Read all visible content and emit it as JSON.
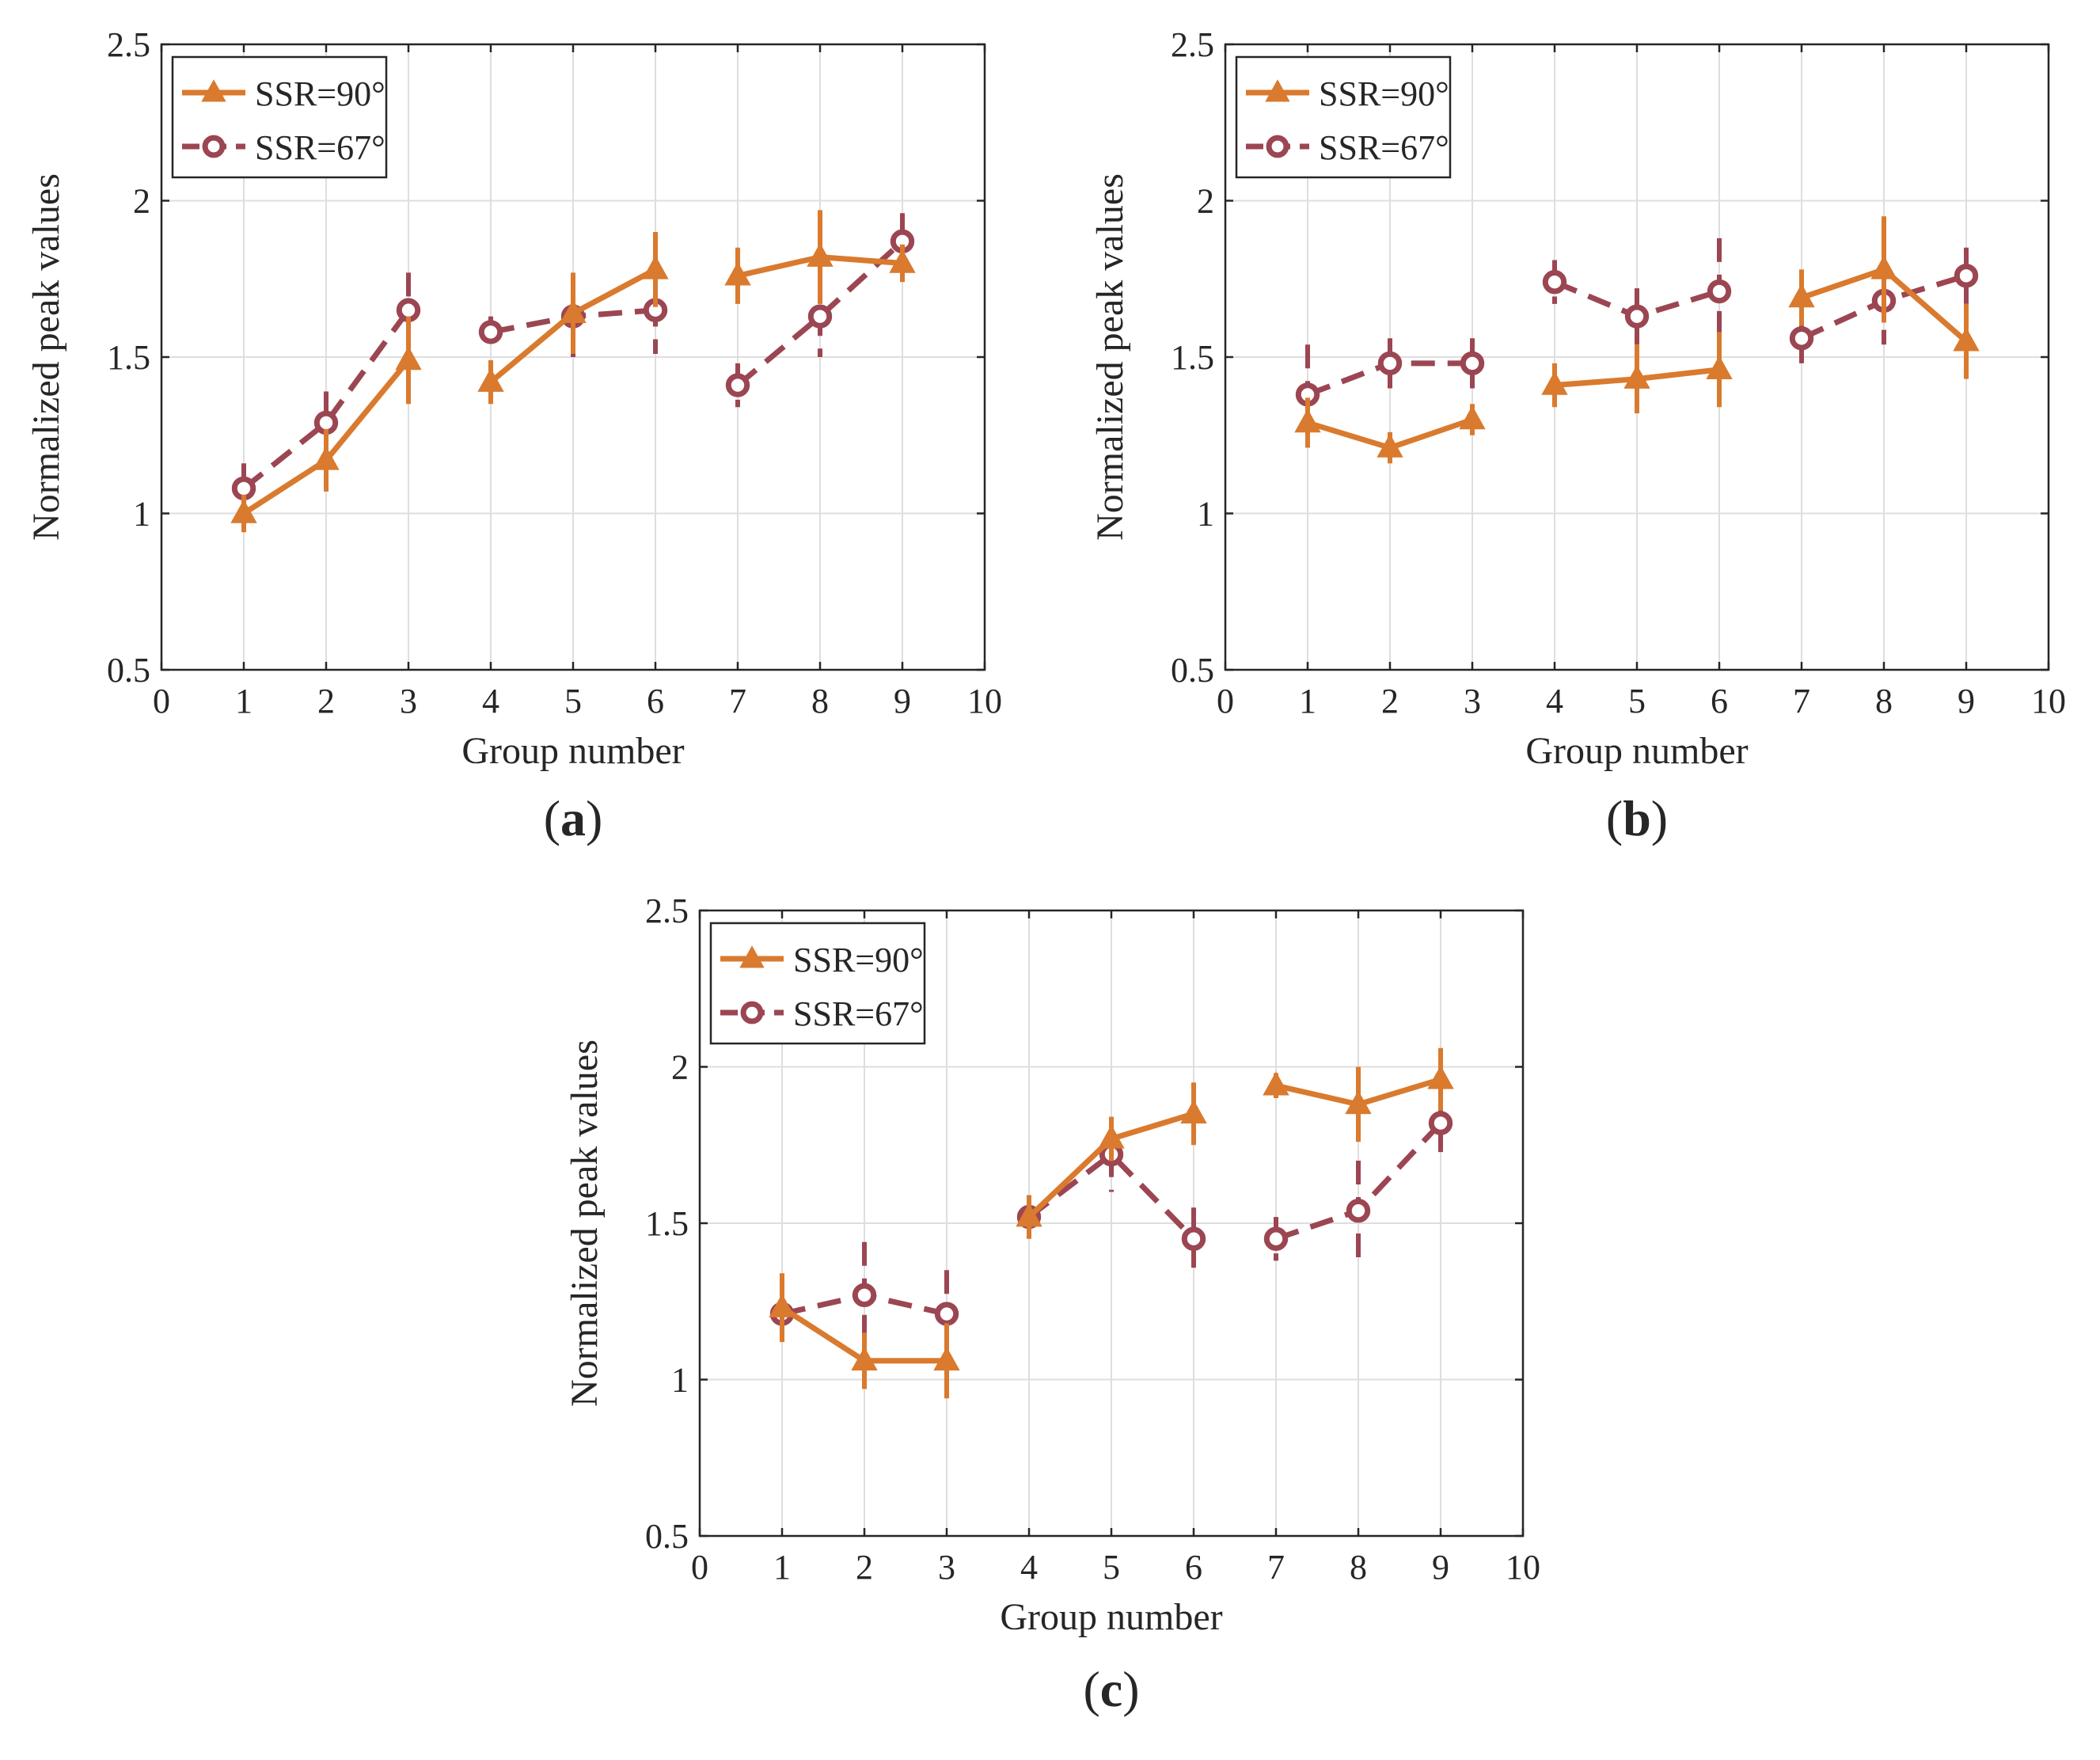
{
  "chart_data": [
    {
      "type": "line",
      "panel_label": "(a)",
      "panel_letter": "a",
      "xlabel": "Group number",
      "ylabel": "Normalized peak values",
      "xlim": [
        0,
        10
      ],
      "ylim": [
        0.5,
        2.5
      ],
      "xticks": [
        0,
        1,
        2,
        3,
        4,
        5,
        6,
        7,
        8,
        9,
        10
      ],
      "yticks": [
        0.5,
        1,
        1.5,
        2,
        2.5
      ],
      "grid": true,
      "legend_position": "top-left",
      "series": [
        {
          "name": "SSR=90°",
          "color": "#D97A2E",
          "marker": "triangle",
          "line_style": "solid",
          "segments": [
            {
              "x": [
                1,
                2,
                3
              ],
              "y": [
                1.0,
                1.17,
                1.49
              ],
              "err": [
                0.06,
                0.1,
                0.14
              ]
            },
            {
              "x": [
                4,
                5,
                6
              ],
              "y": [
                1.42,
                1.64,
                1.78
              ],
              "err": [
                0.07,
                0.13,
                0.12
              ]
            },
            {
              "x": [
                7,
                8,
                9
              ],
              "y": [
                1.76,
                1.82,
                1.8
              ],
              "err": [
                0.09,
                0.15,
                0.06
              ]
            }
          ]
        },
        {
          "name": "SSR=67°",
          "color": "#9B4652",
          "marker": "circle",
          "line_style": "dashed",
          "segments": [
            {
              "x": [
                1,
                2,
                3
              ],
              "y": [
                1.08,
                1.29,
                1.65
              ],
              "err": [
                0.08,
                0.1,
                0.12
              ]
            },
            {
              "x": [
                4,
                5,
                6
              ],
              "y": [
                1.58,
                1.63,
                1.65
              ],
              "err": [
                0.05,
                0.13,
                0.14
              ]
            },
            {
              "x": [
                7,
                8,
                9
              ],
              "y": [
                1.41,
                1.63,
                1.87
              ],
              "err": [
                0.07,
                0.13,
                0.09
              ]
            }
          ]
        }
      ]
    },
    {
      "type": "line",
      "panel_label": "(b)",
      "panel_letter": "b",
      "xlabel": "Group number",
      "ylabel": "Normalized peak values",
      "xlim": [
        0,
        10
      ],
      "ylim": [
        0.5,
        2.5
      ],
      "xticks": [
        0,
        1,
        2,
        3,
        4,
        5,
        6,
        7,
        8,
        9,
        10
      ],
      "yticks": [
        0.5,
        1,
        1.5,
        2,
        2.5
      ],
      "grid": true,
      "legend_position": "top-left",
      "series": [
        {
          "name": "SSR=90°",
          "color": "#D97A2E",
          "marker": "triangle",
          "line_style": "solid",
          "segments": [
            {
              "x": [
                1,
                2,
                3
              ],
              "y": [
                1.29,
                1.21,
                1.3
              ],
              "err": [
                0.08,
                0.05,
                0.05
              ]
            },
            {
              "x": [
                4,
                5,
                6
              ],
              "y": [
                1.41,
                1.43,
                1.46
              ],
              "err": [
                0.07,
                0.11,
                0.12
              ]
            },
            {
              "x": [
                7,
                8,
                9
              ],
              "y": [
                1.69,
                1.78,
                1.55
              ],
              "err": [
                0.09,
                0.17,
                0.12
              ]
            }
          ]
        },
        {
          "name": "SSR=67°",
          "color": "#9B4652",
          "marker": "circle",
          "line_style": "dashed",
          "segments": [
            {
              "x": [
                1,
                2,
                3
              ],
              "y": [
                1.38,
                1.48,
                1.48
              ],
              "err": [
                0.16,
                0.08,
                0.08
              ]
            },
            {
              "x": [
                4,
                5,
                6
              ],
              "y": [
                1.74,
                1.63,
                1.71
              ],
              "err": [
                0.07,
                0.09,
                0.17
              ]
            },
            {
              "x": [
                7,
                8,
                9
              ],
              "y": [
                1.56,
                1.68,
                1.76
              ],
              "err": [
                0.08,
                0.14,
                0.09
              ]
            }
          ]
        }
      ]
    },
    {
      "type": "line",
      "panel_label": "(c)",
      "panel_letter": "c",
      "xlabel": "Group number",
      "ylabel": "Normalized peak values",
      "xlim": [
        0,
        10
      ],
      "ylim": [
        0.5,
        2.5
      ],
      "xticks": [
        0,
        1,
        2,
        3,
        4,
        5,
        6,
        7,
        8,
        9,
        10
      ],
      "yticks": [
        0.5,
        1,
        1.5,
        2,
        2.5
      ],
      "grid": true,
      "legend_position": "top-left",
      "series": [
        {
          "name": "SSR=90°",
          "color": "#D97A2E",
          "marker": "triangle",
          "line_style": "solid",
          "segments": [
            {
              "x": [
                1,
                2,
                3
              ],
              "y": [
                1.23,
                1.06,
                1.06
              ],
              "err": [
                0.11,
                0.09,
                0.12
              ]
            },
            {
              "x": [
                4,
                5,
                6
              ],
              "y": [
                1.52,
                1.77,
                1.85
              ],
              "err": [
                0.07,
                0.07,
                0.1
              ]
            },
            {
              "x": [
                7,
                8,
                9
              ],
              "y": [
                1.94,
                1.88,
                1.96
              ],
              "err": [
                0.04,
                0.12,
                0.1
              ]
            }
          ]
        },
        {
          "name": "SSR=67°",
          "color": "#9B4652",
          "marker": "circle",
          "line_style": "dashed",
          "segments": [
            {
              "x": [
                1,
                2,
                3
              ],
              "y": [
                1.21,
                1.27,
                1.21
              ],
              "err": [
                0.05,
                0.17,
                0.14
              ]
            },
            {
              "x": [
                4,
                5,
                6
              ],
              "y": [
                1.52,
                1.72,
                1.45
              ],
              "err": [
                0.05,
                0.12,
                0.1
              ]
            },
            {
              "x": [
                7,
                8,
                9
              ],
              "y": [
                1.45,
                1.54,
                1.82
              ],
              "err": [
                0.07,
                0.16,
                0.1
              ]
            }
          ]
        }
      ]
    }
  ]
}
